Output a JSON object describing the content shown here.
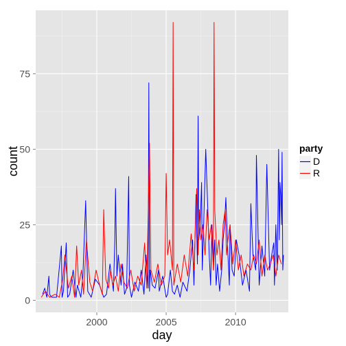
{
  "chart_data": {
    "type": "line",
    "xlabel": "day",
    "ylabel": "count",
    "xlim": [
      1995.6,
      2013.8
    ],
    "ylim": [
      -4,
      96
    ],
    "x_ticks": [
      2000,
      2005,
      2010
    ],
    "x_tick_labels": [
      "2000",
      "2005",
      "2010"
    ],
    "y_ticks": [
      0,
      25,
      50,
      75
    ],
    "y_tick_labels": [
      "0",
      "25",
      "50",
      "75"
    ],
    "grid": true,
    "legend": {
      "title": "party",
      "position": "right"
    },
    "series": [
      {
        "name": "D",
        "color": "#0000ff",
        "x": [
          1996.1,
          1996.25,
          1996.4,
          1996.55,
          1996.6,
          1996.75,
          1997.1,
          1997.45,
          1997.5,
          1997.6,
          1997.8,
          1997.9,
          1998.05,
          1998.3,
          1998.5,
          1998.6,
          1998.85,
          1999.0,
          1999.2,
          1999.35,
          1999.6,
          1999.9,
          2000.2,
          2000.5,
          2000.7,
          2000.95,
          2001.2,
          2001.3,
          2001.35,
          2001.45,
          2001.55,
          2001.75,
          2001.85,
          2002.0,
          2002.15,
          2002.3,
          2002.35,
          2002.5,
          2002.75,
          2003.0,
          2003.2,
          2003.4,
          2003.55,
          2003.7,
          2003.75,
          2003.8,
          2003.85,
          2004.0,
          2004.2,
          2004.45,
          2004.5,
          2004.75,
          2005.0,
          2005.1,
          2005.3,
          2005.45,
          2005.6,
          2005.8,
          2006.0,
          2006.2,
          2006.5,
          2006.7,
          2006.9,
          2007.0,
          2007.15,
          2007.25,
          2007.3,
          2007.35,
          2007.45,
          2007.55,
          2007.6,
          2007.7,
          2007.85,
          2008.0,
          2008.1,
          2008.2,
          2008.3,
          2008.4,
          2008.5,
          2008.6,
          2008.7,
          2008.85,
          2009.0,
          2009.1,
          2009.2,
          2009.3,
          2009.45,
          2009.55,
          2009.6,
          2009.75,
          2009.9,
          2010.05,
          2010.25,
          2010.5,
          2010.75,
          2011.0,
          2011.1,
          2011.25,
          2011.45,
          2011.5,
          2011.7,
          2011.9,
          2012.1,
          2012.25,
          2012.45,
          2012.6,
          2012.75,
          2012.8,
          2012.9,
          2013.0,
          2013.05,
          2013.1,
          2013.15,
          2013.2,
          2013.25,
          2013.3,
          2013.35,
          2013.4,
          2013.45
        ],
        "values": [
          2,
          4,
          1,
          8,
          2,
          1,
          1,
          18,
          1,
          3,
          19,
          1,
          2,
          10,
          1,
          5,
          1,
          8,
          33,
          3,
          1,
          7,
          5,
          1,
          2,
          12,
          3,
          20,
          37,
          8,
          15,
          5,
          12,
          2,
          4,
          41,
          5,
          1,
          6,
          3,
          10,
          2,
          15,
          4,
          72,
          3,
          10,
          5,
          4,
          10,
          3,
          8,
          1,
          2,
          10,
          3,
          2,
          5,
          1,
          6,
          3,
          10,
          20,
          5,
          35,
          12,
          61,
          20,
          25,
          39,
          10,
          25,
          50,
          30,
          15,
          5,
          25,
          10,
          20,
          5,
          12,
          3,
          10,
          20,
          25,
          34,
          15,
          5,
          25,
          10,
          8,
          20,
          15,
          5,
          10,
          3,
          32,
          15,
          10,
          48,
          5,
          18,
          8,
          45,
          10,
          15,
          19,
          5,
          25,
          10,
          29,
          50,
          20,
          39,
          35,
          25,
          49,
          10,
          15
        ]
      },
      {
        "name": "R",
        "color": "#ff0000",
        "x": [
          1996.0,
          1996.3,
          1996.6,
          1997.0,
          1997.3,
          1997.55,
          1997.7,
          1997.95,
          1998.2,
          1998.4,
          1998.55,
          1998.7,
          1998.9,
          1999.05,
          1999.25,
          1999.5,
          1999.7,
          1999.95,
          2000.15,
          2000.4,
          2000.5,
          2000.65,
          2000.85,
          2001.0,
          2001.15,
          2001.35,
          2001.55,
          2001.75,
          2001.95,
          2002.2,
          2002.45,
          2002.7,
          2002.95,
          2003.2,
          2003.45,
          2003.6,
          2003.8,
          2003.9,
          2004.15,
          2004.4,
          2004.65,
          2004.9,
          2005.0,
          2005.1,
          2005.25,
          2005.45,
          2005.5,
          2005.55,
          2005.8,
          2006.05,
          2006.3,
          2006.55,
          2006.8,
          2007.0,
          2007.2,
          2007.3,
          2007.4,
          2007.5,
          2007.65,
          2007.8,
          2007.95,
          2008.1,
          2008.25,
          2008.4,
          2008.45,
          2008.5,
          2008.65,
          2008.8,
          2008.95,
          2009.1,
          2009.25,
          2009.35,
          2009.45,
          2009.6,
          2009.8,
          2010.0,
          2010.2,
          2010.4,
          2010.6,
          2010.85,
          2011.1,
          2011.3,
          2011.5,
          2011.7,
          2011.9,
          2012.1,
          2012.3,
          2012.5,
          2012.7,
          2012.9,
          2013.1,
          2013.3
        ],
        "values": [
          1,
          3,
          1,
          2,
          1,
          7,
          15,
          4,
          8,
          1,
          18,
          5,
          10,
          2,
          20,
          6,
          3,
          10,
          6,
          2,
          30,
          7,
          4,
          10,
          5,
          8,
          3,
          12,
          6,
          4,
          10,
          3,
          8,
          5,
          19,
          4,
          52,
          10,
          6,
          12,
          5,
          8,
          42,
          15,
          20,
          10,
          92,
          5,
          12,
          6,
          15,
          8,
          22,
          10,
          37,
          15,
          30,
          20,
          25,
          15,
          30,
          20,
          25,
          10,
          92,
          30,
          15,
          20,
          10,
          25,
          30,
          15,
          20,
          25,
          12,
          20,
          10,
          15,
          8,
          12,
          10,
          15,
          12,
          20,
          8,
          15,
          10,
          12,
          15,
          8,
          15,
          12
        ]
      }
    ]
  }
}
